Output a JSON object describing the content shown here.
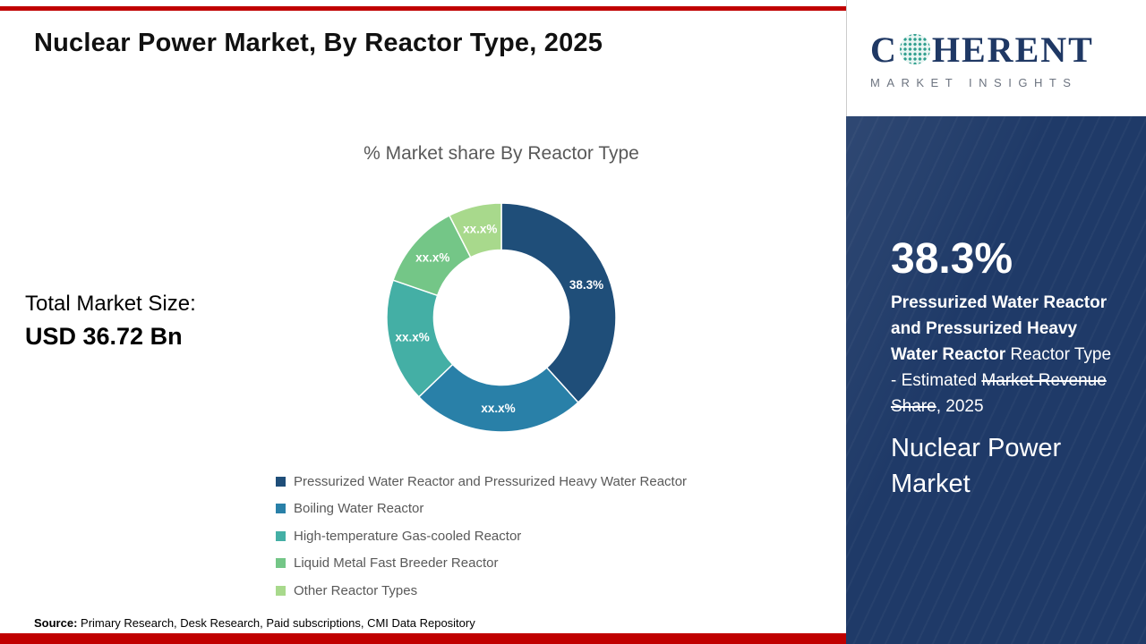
{
  "header": {
    "title": "Nuclear Power Market, By Reactor Type, 2025"
  },
  "main": {
    "total_market_label": "Total Market Size:",
    "total_market_value": "USD 36.72 Bn"
  },
  "chart_data": {
    "type": "pie",
    "subtype": "donut",
    "title": "% Market share By Reactor Type",
    "categories": [
      "Pressurized Water Reactor and Pressurized Heavy Water Reactor",
      "Boiling Water Reactor",
      "High-temperature Gas-cooled Reactor",
      "Liquid Metal Fast Breeder Reactor",
      "Other Reactor Types"
    ],
    "values": [
      38.3,
      24.5,
      17.5,
      12.2,
      7.5
    ],
    "value_labels": [
      "38.3%",
      "xx.x%",
      "xx.x%",
      "xx.x%",
      "xx.x%"
    ],
    "colors": [
      "#1f4e79",
      "#2980a8",
      "#44afa5",
      "#74c687",
      "#a8d98c"
    ],
    "inner_radius_ratio": 0.59,
    "legend_position": "bottom",
    "note": "Only the 38.3% share is labeled; other slice values are masked as xx.x% and estimated from arc angles."
  },
  "footer": {
    "source_label": "Source:",
    "source_text": " Primary Research, Desk Research, Paid subscriptions, CMI Data Repository"
  },
  "sidebar": {
    "logo": {
      "brand_prefix": "C",
      "brand_suffix": "HERENT",
      "subtitle": "MARKET INSIGHTS",
      "globe_icon": "dotted-globe-icon"
    },
    "stat_value": "38.3%",
    "stat_bold_text": "Pressurized Water Reactor and Pressurized Heavy Water Reactor ",
    "stat_regular_prefix": "Reactor Type - Estimated ",
    "stat_struck_text": "Market Revenue Share",
    "stat_suffix": ", 2025",
    "market_name": "Nuclear Power Market"
  },
  "colors": {
    "accent_red": "#c00000",
    "sidebar_navy": "#1f3a68",
    "logo_navy": "#1f3864",
    "text_gray": "#595959"
  }
}
